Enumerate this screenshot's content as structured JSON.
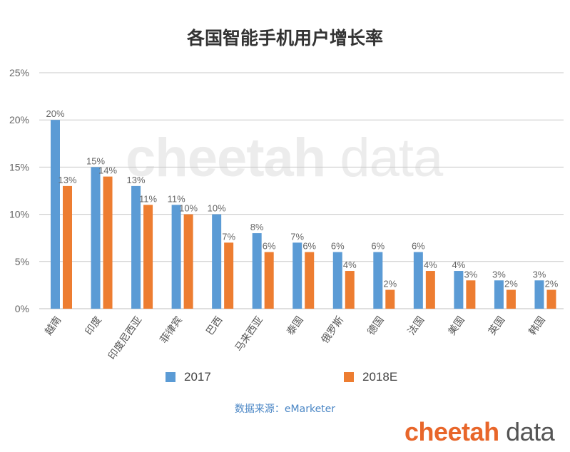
{
  "chart_data": {
    "type": "bar",
    "title": "各国智能手机用户增长率",
    "categories": [
      "越南",
      "印度",
      "印度尼西亚",
      "菲律宾",
      "巴西",
      "马来西亚",
      "泰国",
      "俄罗斯",
      "德国",
      "法国",
      "美国",
      "英国",
      "韩国"
    ],
    "series": [
      {
        "name": "2017",
        "color": "#5b9bd5",
        "values": [
          20,
          15,
          13,
          11,
          10,
          8,
          7,
          6,
          6,
          6,
          4,
          3,
          3
        ]
      },
      {
        "name": "2018E",
        "color": "#ed7d31",
        "values": [
          13,
          14,
          11,
          10,
          7,
          6,
          6,
          4,
          2,
          4,
          3,
          2,
          2
        ]
      }
    ],
    "ylim": [
      0,
      25
    ],
    "yticks": [
      "0%",
      "5%",
      "10%",
      "15%",
      "20%",
      "25%"
    ],
    "value_suffix": "%",
    "grid": true,
    "legend": "bottom",
    "xlabel": "",
    "ylabel": ""
  },
  "source_note": "数据来源：eMarketer",
  "watermark": {
    "part1": "cheetah",
    "part2": " data"
  },
  "brand": {
    "part1": "cheetah",
    "part2": " data"
  }
}
